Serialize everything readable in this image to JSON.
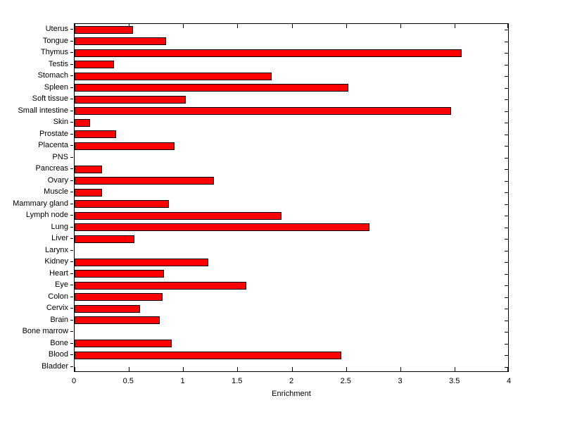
{
  "chart_data": {
    "type": "bar",
    "orientation": "horizontal",
    "title": "",
    "xlabel": "Enrichment",
    "ylabel": "",
    "xlim": [
      0,
      4
    ],
    "xticks": [
      0,
      0.5,
      1,
      1.5,
      2,
      2.5,
      3,
      3.5,
      4
    ],
    "xtick_labels": [
      "0",
      "0.5",
      "1",
      "1.5",
      "2",
      "2.5",
      "3",
      "3.5",
      "4"
    ],
    "categories": [
      "Uterus",
      "Tongue",
      "Thymus",
      "Testis",
      "Stomach",
      "Spleen",
      "Soft tissue",
      "Small intestine",
      "Skin",
      "Prostate",
      "Placenta",
      "PNS",
      "Pancreas",
      "Ovary",
      "Muscle",
      "Mammary gland",
      "Lymph node",
      "Lung",
      "Liver",
      "Larynx",
      "Kidney",
      "Heart",
      "Eye",
      "Colon",
      "Cervix",
      "Brain",
      "Bone marrow",
      "Bone",
      "Blood",
      "Bladder"
    ],
    "values": [
      0.54,
      0.84,
      3.56,
      0.36,
      1.81,
      2.52,
      1.02,
      3.46,
      0.14,
      0.38,
      0.92,
      0,
      0.25,
      1.28,
      0.25,
      0.87,
      1.9,
      2.71,
      0.55,
      0,
      1.23,
      0.82,
      1.58,
      0.81,
      0.6,
      0.78,
      0,
      0.89,
      2.45,
      0
    ],
    "bar_color": "#ff0000",
    "bar_edge_color": "#000000",
    "grid": false,
    "legend": null
  }
}
